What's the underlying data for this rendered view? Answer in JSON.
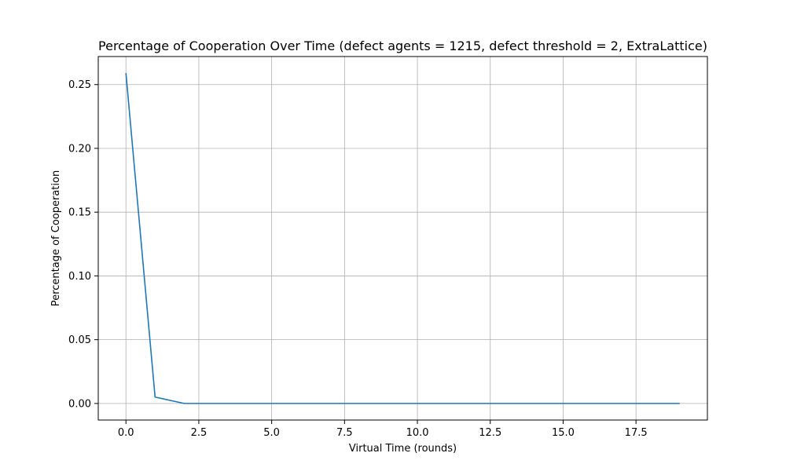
{
  "chart_data": {
    "type": "line",
    "title": "Percentage of Cooperation Over Time (defect agents = 1215, defect threshold = 2, ExtraLattice)",
    "xlabel": "Virtual Time (rounds)",
    "ylabel": "Percentage of Cooperation",
    "xlim": [
      -0.95,
      19.95
    ],
    "ylim": [
      -0.013,
      0.272
    ],
    "grid": true,
    "xticks": [
      0.0,
      2.5,
      5.0,
      7.5,
      10.0,
      12.5,
      15.0,
      17.5
    ],
    "xtick_labels": [
      "0.0",
      "2.5",
      "5.0",
      "7.5",
      "10.0",
      "12.5",
      "15.0",
      "17.5"
    ],
    "yticks": [
      0.0,
      0.05,
      0.1,
      0.15,
      0.2,
      0.25
    ],
    "ytick_labels": [
      "0.00",
      "0.05",
      "0.10",
      "0.15",
      "0.20",
      "0.25"
    ],
    "series": [
      {
        "color": "#1f77b4",
        "x": [
          0,
          1,
          2,
          3,
          4,
          5,
          6,
          7,
          8,
          9,
          10,
          11,
          12,
          13,
          14,
          15,
          16,
          17,
          18,
          19
        ],
        "values": [
          0.259,
          0.005,
          0.0,
          0.0,
          0.0,
          0.0,
          0.0,
          0.0,
          0.0,
          0.0,
          0.0,
          0.0,
          0.0,
          0.0,
          0.0,
          0.0,
          0.0,
          0.0,
          0.0,
          0.0
        ]
      }
    ]
  }
}
